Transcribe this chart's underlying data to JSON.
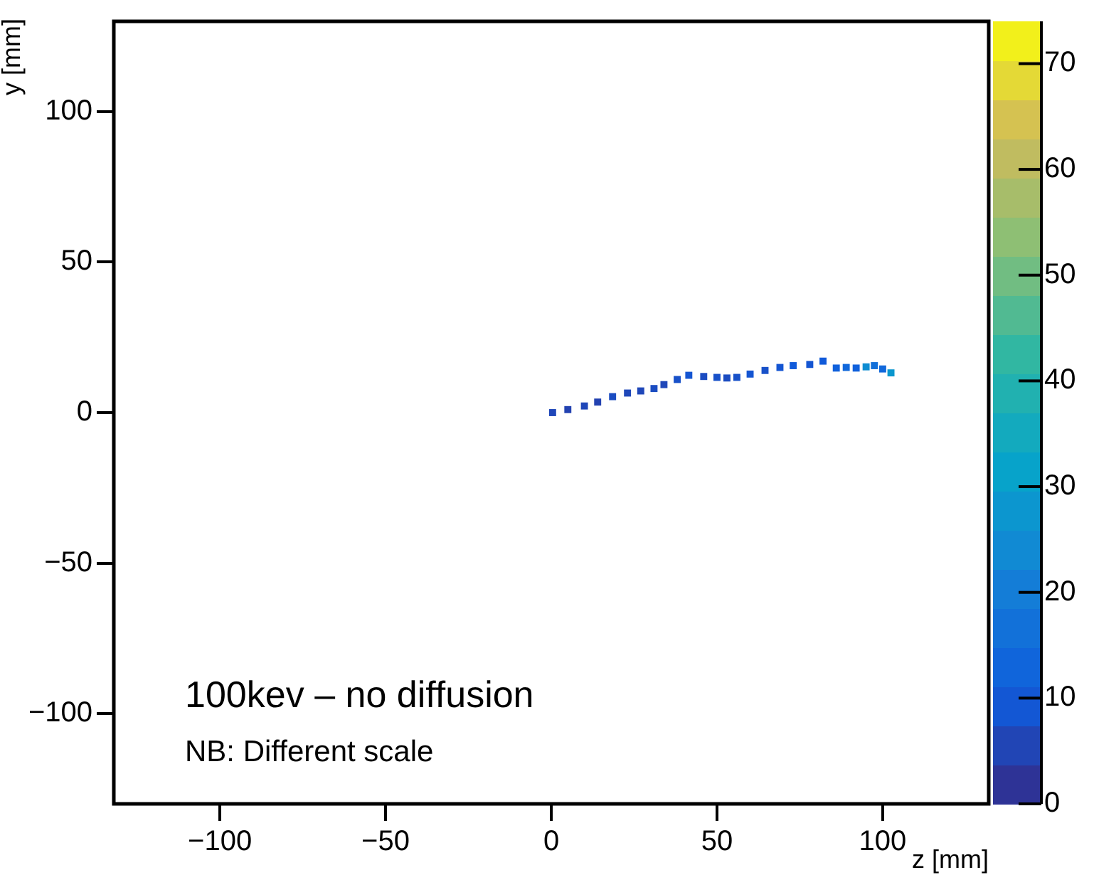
{
  "chart_data": {
    "type": "scatter",
    "xlabel": "z [mm]",
    "ylabel": "y [mm]",
    "annotations": [
      "100kev – no diffusion",
      "NB: Different scale"
    ],
    "x": [
      0.4,
      5,
      10,
      14,
      18.5,
      23,
      27,
      31,
      34,
      38,
      41.5,
      46,
      50,
      53,
      56,
      60,
      64.5,
      69,
      73,
      78,
      82,
      86,
      89,
      92,
      95,
      97.5,
      100,
      102.5
    ],
    "values": [
      0,
      1,
      2.2,
      3.5,
      5.3,
      6.5,
      7.2,
      8,
      9.3,
      11,
      12.4,
      12,
      11.7,
      11.5,
      11.7,
      12.8,
      14,
      15,
      15.6,
      16,
      17.1,
      14.8,
      15,
      14.8,
      15.2,
      15.6,
      14.5,
      13.2
    ],
    "cvalues": [
      6,
      5,
      6,
      5,
      7,
      6,
      6,
      7,
      6,
      8,
      9,
      7,
      8,
      7,
      8,
      9,
      8,
      9,
      10,
      9,
      10,
      12,
      14,
      12,
      25,
      16,
      14,
      28
    ],
    "marker": "square",
    "clim": [
      0,
      74
    ],
    "cticks": [
      0,
      10,
      20,
      30,
      40,
      50,
      60,
      70
    ],
    "xlim": [
      -132,
      132
    ],
    "ylim": [
      -130,
      130
    ],
    "xticks": [
      -100,
      -50,
      0,
      50,
      100
    ],
    "yticks": [
      -100,
      -50,
      0,
      50,
      100
    ]
  }
}
